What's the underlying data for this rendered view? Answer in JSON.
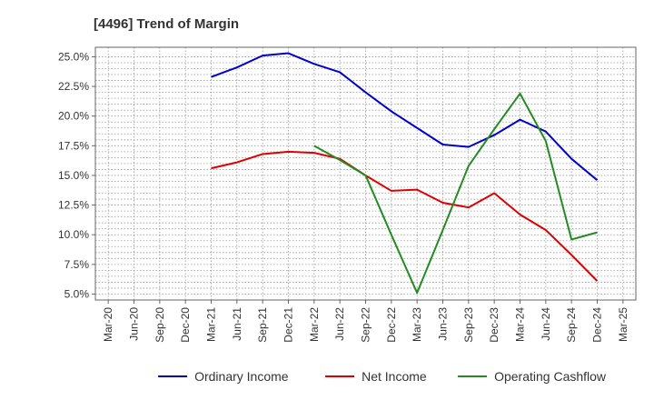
{
  "chart_data": {
    "type": "line",
    "title": "[4496]  Trend of Margin",
    "xlabel": "",
    "ylabel": "",
    "x": [
      "Mar-20",
      "Jun-20",
      "Sep-20",
      "Dec-20",
      "Mar-21",
      "Jun-21",
      "Sep-21",
      "Dec-21",
      "Mar-22",
      "Jun-22",
      "Sep-22",
      "Dec-22",
      "Mar-23",
      "Jun-23",
      "Sep-23",
      "Dec-23",
      "Mar-24",
      "Jun-24",
      "Sep-24",
      "Dec-24",
      "Mar-25"
    ],
    "ylim": [
      4.5,
      25.8
    ],
    "yticks": [
      5.0,
      7.5,
      10.0,
      12.5,
      15.0,
      17.5,
      20.0,
      22.5,
      25.0
    ],
    "ytick_labels": [
      "5.0%",
      "7.5%",
      "10.0%",
      "12.5%",
      "15.0%",
      "17.5%",
      "20.0%",
      "22.5%",
      "25.0%"
    ],
    "grid": true,
    "legend_position": "bottom",
    "series": [
      {
        "name": "Ordinary Income",
        "color": "#0000cc",
        "values": [
          null,
          null,
          null,
          null,
          23.3,
          24.1,
          25.1,
          25.3,
          24.4,
          23.7,
          22.0,
          20.4,
          19.0,
          17.6,
          17.4,
          18.4,
          19.7,
          18.7,
          16.4,
          14.6,
          null
        ]
      },
      {
        "name": "Net Income",
        "color": "#dd0000",
        "values": [
          null,
          null,
          null,
          null,
          15.6,
          16.1,
          16.8,
          17.0,
          16.9,
          16.4,
          15.0,
          13.7,
          13.8,
          12.7,
          12.3,
          13.5,
          11.7,
          10.4,
          8.3,
          6.1,
          null
        ]
      },
      {
        "name": "Operating Cashflow",
        "color": "#228b22",
        "values": [
          null,
          null,
          null,
          null,
          null,
          null,
          null,
          null,
          17.5,
          16.3,
          15.0,
          10.0,
          5.1,
          10.4,
          15.8,
          18.9,
          21.9,
          17.9,
          9.6,
          10.2,
          null
        ]
      }
    ]
  }
}
